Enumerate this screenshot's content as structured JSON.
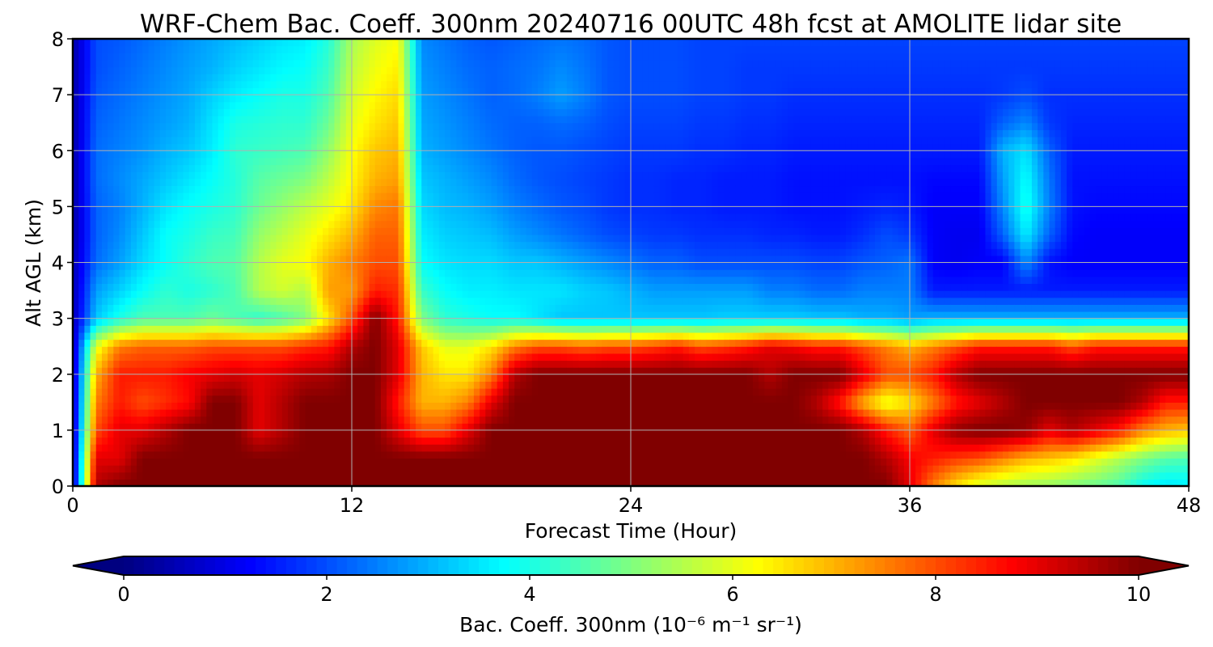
{
  "chart_data": {
    "type": "heatmap",
    "title": "WRF-Chem Bac. Coeff. 300nm  20240716 00UTC 48h fcst at AMOLITE lidar site",
    "xlabel": "Forecast Time (Hour)",
    "ylabel": "Alt AGL (km)",
    "xlim": [
      0,
      48
    ],
    "ylim": [
      0,
      8
    ],
    "xticks": [
      0,
      12,
      24,
      36,
      48
    ],
    "yticks": [
      0,
      1,
      2,
      3,
      4,
      5,
      6,
      7,
      8
    ],
    "grid": true,
    "colormap": "jet",
    "colorbar": {
      "label": "Bac. Coeff. 300nm  (10⁻⁶ m⁻¹ sr⁻¹)",
      "range": [
        0,
        10
      ],
      "ticks": [
        0,
        2,
        4,
        6,
        8,
        10
      ],
      "extend": "both",
      "orientation": "horizontal"
    },
    "x": [
      0,
      1,
      2,
      3,
      4,
      5,
      6,
      7,
      8,
      9,
      10,
      11,
      12,
      13,
      14,
      15,
      16,
      17,
      18,
      19,
      20,
      21,
      22,
      23,
      24,
      25,
      26,
      27,
      28,
      29,
      30,
      31,
      32,
      33,
      34,
      35,
      36,
      37,
      38,
      39,
      40,
      41,
      42,
      43,
      44,
      45,
      46,
      47,
      48
    ],
    "y": [
      0,
      0.5,
      1,
      1.5,
      2,
      2.5,
      3,
      3.5,
      4,
      4.5,
      5,
      5.5,
      6,
      6.5,
      7,
      7.5,
      8
    ],
    "z": [
      [
        0.5,
        9.5,
        10,
        10,
        10,
        10,
        10,
        10,
        10,
        10,
        10,
        10,
        10,
        10,
        10,
        10,
        10,
        10,
        10,
        10,
        10,
        10,
        10,
        10,
        10,
        10,
        10,
        10,
        10,
        10,
        10,
        10,
        10,
        10,
        10,
        10,
        9.0,
        7.5,
        6.5,
        5.8,
        5.5,
        5.3,
        5.2,
        5.0,
        4.8,
        4.5,
        3.8,
        3.5,
        3.6
      ],
      [
        0.5,
        9.0,
        9.0,
        10,
        10,
        10,
        10,
        10,
        10,
        10,
        10,
        10,
        10,
        10,
        10,
        10,
        10,
        10,
        10,
        10,
        10,
        10,
        10,
        10,
        10,
        10,
        10,
        10,
        10,
        10,
        10,
        10,
        10,
        10,
        10,
        9.5,
        8.8,
        8.5,
        8.2,
        8.0,
        7.5,
        7.0,
        6.8,
        6.5,
        6.0,
        5.5,
        5.0,
        4.6,
        4.5
      ],
      [
        0.5,
        8.0,
        9.0,
        9.0,
        9.5,
        10,
        10,
        10,
        9.0,
        9.5,
        10,
        10,
        10,
        10,
        9.0,
        8.0,
        8.0,
        9.0,
        10,
        10,
        10,
        10,
        10,
        10,
        10,
        10,
        10,
        10,
        10,
        10,
        10,
        10,
        10,
        10,
        9.5,
        8.5,
        7.8,
        9.0,
        9.8,
        10,
        10,
        9.8,
        9.0,
        9.5,
        9.0,
        8.5,
        7.5,
        7.0,
        6.8
      ],
      [
        0.5,
        7.5,
        8.5,
        8.0,
        8.3,
        8.7,
        10,
        10,
        9.0,
        9.5,
        10,
        10,
        10,
        10,
        8.5,
        7.0,
        7.0,
        7.5,
        9.0,
        10,
        10,
        10,
        10,
        10,
        10,
        10,
        10,
        10,
        10,
        10,
        10,
        10,
        9.5,
        8.5,
        7.0,
        6.0,
        6.5,
        7.5,
        8.5,
        9.0,
        9.5,
        10,
        10,
        10,
        10,
        10,
        9.5,
        8.5,
        8.5
      ],
      [
        0.5,
        7.0,
        8.5,
        8.5,
        8.5,
        8.8,
        9.0,
        9.2,
        9.0,
        9.2,
        9.5,
        9.6,
        10,
        10,
        9.0,
        7.0,
        6.5,
        6.5,
        7.5,
        9.5,
        10,
        10,
        10,
        10,
        10,
        10,
        10,
        10,
        10,
        10,
        9.5,
        10,
        10,
        10,
        9.0,
        8.0,
        8.0,
        8.5,
        9.5,
        10,
        10,
        10,
        10,
        10,
        10,
        10,
        10,
        10,
        10
      ],
      [
        0.5,
        6.0,
        7.5,
        7.8,
        7.8,
        7.8,
        8.0,
        8.0,
        8.0,
        8.0,
        8.3,
        8.5,
        9.5,
        10,
        9.0,
        6.8,
        6.0,
        6.0,
        6.5,
        7.5,
        8.0,
        8.0,
        7.8,
        8.0,
        8.0,
        8.2,
        8.5,
        8.0,
        8.2,
        8.5,
        9.0,
        8.8,
        8.5,
        8.5,
        8.0,
        7.5,
        7.0,
        7.5,
        8.0,
        8.5,
        8.5,
        8.5,
        8.5,
        8.0,
        8.5,
        8.5,
        8.5,
        8.5,
        8.5
      ],
      [
        0.5,
        3.2,
        4.0,
        4.5,
        4.5,
        4.5,
        4.8,
        4.5,
        4.2,
        4.5,
        5.0,
        6.5,
        8.0,
        10,
        8.5,
        5.0,
        4.2,
        4.0,
        3.8,
        3.8,
        3.5,
        3.2,
        3.2,
        3.2,
        3.2,
        3.2,
        3.2,
        3.2,
        3.3,
        3.3,
        3.3,
        3.3,
        3.2,
        3.2,
        3.0,
        3.0,
        2.8,
        3.0,
        3.0,
        3.0,
        3.0,
        3.0,
        3.0,
        3.0,
        3.0,
        3.0,
        3.0,
        3.0,
        3.0
      ],
      [
        0.5,
        2.8,
        3.3,
        3.8,
        4.2,
        4.0,
        4.2,
        4.5,
        5.5,
        5.8,
        5.5,
        7.2,
        7.2,
        8.5,
        8.3,
        4.3,
        3.8,
        3.6,
        3.6,
        3.5,
        3.5,
        3.5,
        3.3,
        3.2,
        3.0,
        2.8,
        2.8,
        2.8,
        2.8,
        2.8,
        2.5,
        2.5,
        2.3,
        2.3,
        2.5,
        2.5,
        2.5,
        1.5,
        1.5,
        1.5,
        1.5,
        1.5,
        1.5,
        1.5,
        1.5,
        1.5,
        1.5,
        1.5,
        1.5
      ],
      [
        0.5,
        2.3,
        2.8,
        3.4,
        3.8,
        4.2,
        4.5,
        4.6,
        5.5,
        6.0,
        6.2,
        7.0,
        7.5,
        8.0,
        8.0,
        3.8,
        3.5,
        3.4,
        3.4,
        3.2,
        3.2,
        3.0,
        2.8,
        2.6,
        2.4,
        2.2,
        2.2,
        2.0,
        2.0,
        2.0,
        2.0,
        2.0,
        1.9,
        1.9,
        2.1,
        2.2,
        2.4,
        1.2,
        1.1,
        1.2,
        1.2,
        2.6,
        1.4,
        1.2,
        1.2,
        1.2,
        1.2,
        1.2,
        1.2
      ],
      [
        0.4,
        2.2,
        2.6,
        3.2,
        3.8,
        4.0,
        4.3,
        4.4,
        5.2,
        5.6,
        6.0,
        6.5,
        7.0,
        7.8,
        7.8,
        3.6,
        3.3,
        3.2,
        3.1,
        2.8,
        2.6,
        2.4,
        2.2,
        2.0,
        1.9,
        1.8,
        1.8,
        1.7,
        1.7,
        1.7,
        1.6,
        1.6,
        1.5,
        1.5,
        1.7,
        2.0,
        1.8,
        1.2,
        1.1,
        1.1,
        2.2,
        3.6,
        2.2,
        1.3,
        1.2,
        1.2,
        1.2,
        1.2,
        1.2
      ],
      [
        0.4,
        2.2,
        2.5,
        3.0,
        3.5,
        3.8,
        4.0,
        4.2,
        4.8,
        5.2,
        5.6,
        6.0,
        6.5,
        7.4,
        7.6,
        3.4,
        3.1,
        3.0,
        2.8,
        2.5,
        2.3,
        2.1,
        2.0,
        1.8,
        1.7,
        1.7,
        1.6,
        1.6,
        1.5,
        1.5,
        1.5,
        1.4,
        1.4,
        1.4,
        1.5,
        1.6,
        1.5,
        1.2,
        1.2,
        1.2,
        2.6,
        4.0,
        2.5,
        1.4,
        1.3,
        1.3,
        1.3,
        1.3,
        1.3
      ],
      [
        0.4,
        2.3,
        2.6,
        2.9,
        3.2,
        3.5,
        3.8,
        4.1,
        4.6,
        4.8,
        5.0,
        5.6,
        6.3,
        7.0,
        7.2,
        3.2,
        3.0,
        2.8,
        2.6,
        2.3,
        2.1,
        2.0,
        1.9,
        1.8,
        1.7,
        1.7,
        1.6,
        1.6,
        1.5,
        1.5,
        1.5,
        1.4,
        1.4,
        1.4,
        1.4,
        1.4,
        1.4,
        1.3,
        1.3,
        1.3,
        2.8,
        3.8,
        2.4,
        1.4,
        1.4,
        1.4,
        1.4,
        1.4,
        1.4
      ],
      [
        0.4,
        2.3,
        2.5,
        2.7,
        3.0,
        3.2,
        3.6,
        4.2,
        4.3,
        4.4,
        4.5,
        5.2,
        6.2,
        6.8,
        7.0,
        3.0,
        2.8,
        2.6,
        2.4,
        2.2,
        2.1,
        2.1,
        2.0,
        1.9,
        1.8,
        1.8,
        1.8,
        1.7,
        1.7,
        1.6,
        1.6,
        1.5,
        1.5,
        1.5,
        1.5,
        1.5,
        1.5,
        1.5,
        1.5,
        1.5,
        3.0,
        3.5,
        2.2,
        1.5,
        1.5,
        1.5,
        1.5,
        1.5,
        1.5
      ],
      [
        0.4,
        2.2,
        2.4,
        2.6,
        2.8,
        3.0,
        3.5,
        4.0,
        4.1,
        4.2,
        4.2,
        4.8,
        6.0,
        6.5,
        6.8,
        2.9,
        2.7,
        2.5,
        2.3,
        2.2,
        2.2,
        2.3,
        2.2,
        2.0,
        1.9,
        1.9,
        1.9,
        1.8,
        1.8,
        1.7,
        1.7,
        1.6,
        1.6,
        1.6,
        1.6,
        1.6,
        1.6,
        1.6,
        1.6,
        1.6,
        2.2,
        2.6,
        1.8,
        1.6,
        1.6,
        1.6,
        1.6,
        1.6,
        1.6
      ],
      [
        0.4,
        2.1,
        2.3,
        2.5,
        2.7,
        2.9,
        3.3,
        3.6,
        3.8,
        4.0,
        4.0,
        4.5,
        5.8,
        6.3,
        6.6,
        2.8,
        2.6,
        2.4,
        2.2,
        2.3,
        2.5,
        2.8,
        2.5,
        2.1,
        2.0,
        2.0,
        2.0,
        1.9,
        1.9,
        1.8,
        1.8,
        1.7,
        1.7,
        1.7,
        1.7,
        1.7,
        1.7,
        1.7,
        1.7,
        1.7,
        1.8,
        2.0,
        1.7,
        1.7,
        1.7,
        1.7,
        1.7,
        1.7,
        1.7
      ],
      [
        0.4,
        2.0,
        2.2,
        2.4,
        2.6,
        2.8,
        3.0,
        3.3,
        3.5,
        3.7,
        3.8,
        4.3,
        5.6,
        6.1,
        6.4,
        2.7,
        2.5,
        2.3,
        2.2,
        2.3,
        2.4,
        2.6,
        2.4,
        2.1,
        2.0,
        2.0,
        2.0,
        1.9,
        1.9,
        1.8,
        1.8,
        1.8,
        1.8,
        1.8,
        1.8,
        1.8,
        1.8,
        1.8,
        1.8,
        1.8,
        1.8,
        1.8,
        1.8,
        1.8,
        1.8,
        1.8,
        1.8,
        1.8,
        1.8
      ],
      [
        0.4,
        2.0,
        2.1,
        2.3,
        2.5,
        2.7,
        2.9,
        3.1,
        3.3,
        3.5,
        3.6,
        4.1,
        5.4,
        5.9,
        6.2,
        2.6,
        2.4,
        2.2,
        2.1,
        2.2,
        2.3,
        2.4,
        2.3,
        2.1,
        2.0,
        2.0,
        2.0,
        1.9,
        1.9,
        1.9,
        1.9,
        1.9,
        1.9,
        1.9,
        1.9,
        1.9,
        1.9,
        1.9,
        1.9,
        1.9,
        1.9,
        1.9,
        1.9,
        1.9,
        1.9,
        1.9,
        1.9,
        1.9,
        1.9
      ]
    ]
  }
}
